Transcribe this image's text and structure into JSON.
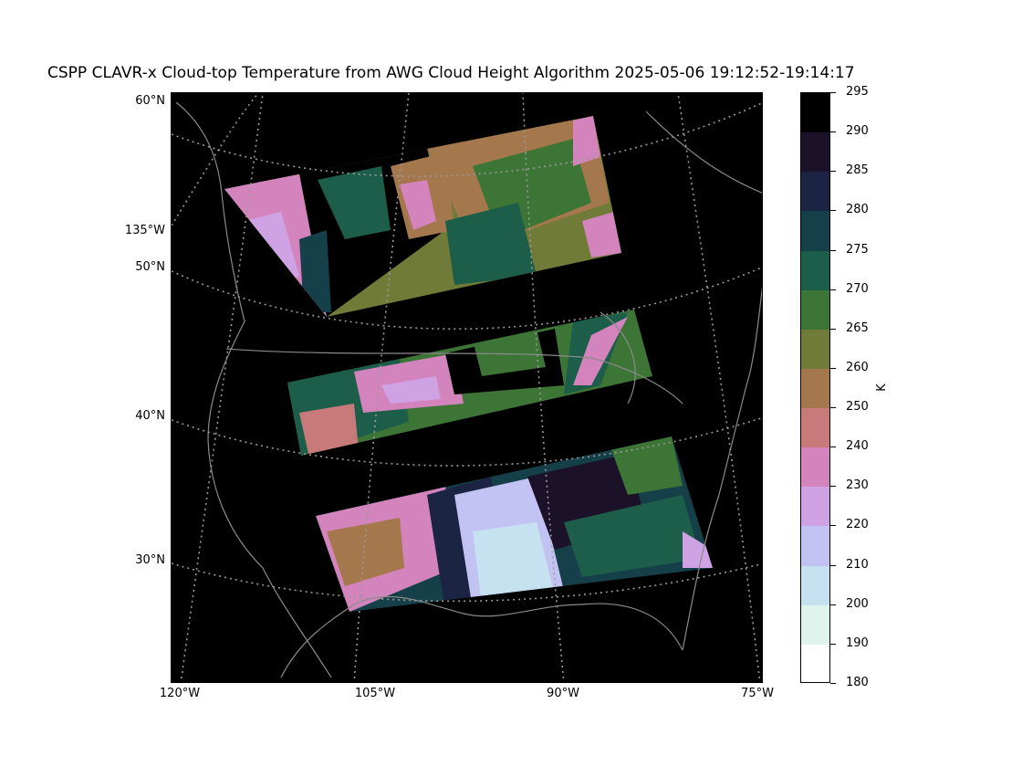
{
  "title": "CSPP CLAVR-x Cloud-top Temperature from AWG Cloud Height Algorithm 2025-05-06 19:12:52-19:14:17",
  "lat_labels": [
    "60°N",
    "135°W",
    "50°N",
    "40°N",
    "30°N"
  ],
  "lon_labels": [
    "120°W",
    "105°W",
    "90°W",
    "75°W"
  ],
  "colorbar": {
    "unit": "K",
    "ticks": [
      "295",
      "290",
      "285",
      "280",
      "275",
      "270",
      "265",
      "260",
      "250",
      "240",
      "230",
      "220",
      "210",
      "200",
      "190",
      "180"
    ],
    "colors": [
      "#000000",
      "#1b1128",
      "#1c2444",
      "#15404a",
      "#1c5e49",
      "#3c7535",
      "#6f7b37",
      "#a4774c",
      "#c87a7a",
      "#d484bd",
      "#cfa2e4",
      "#c2c3f2",
      "#c6e2f0",
      "#e0f4ee",
      "#ffffff"
    ]
  },
  "map": {
    "colors": {
      "background": "#000000",
      "coastline": "#8a8a8a",
      "gridline": "#9a9a9a"
    }
  }
}
